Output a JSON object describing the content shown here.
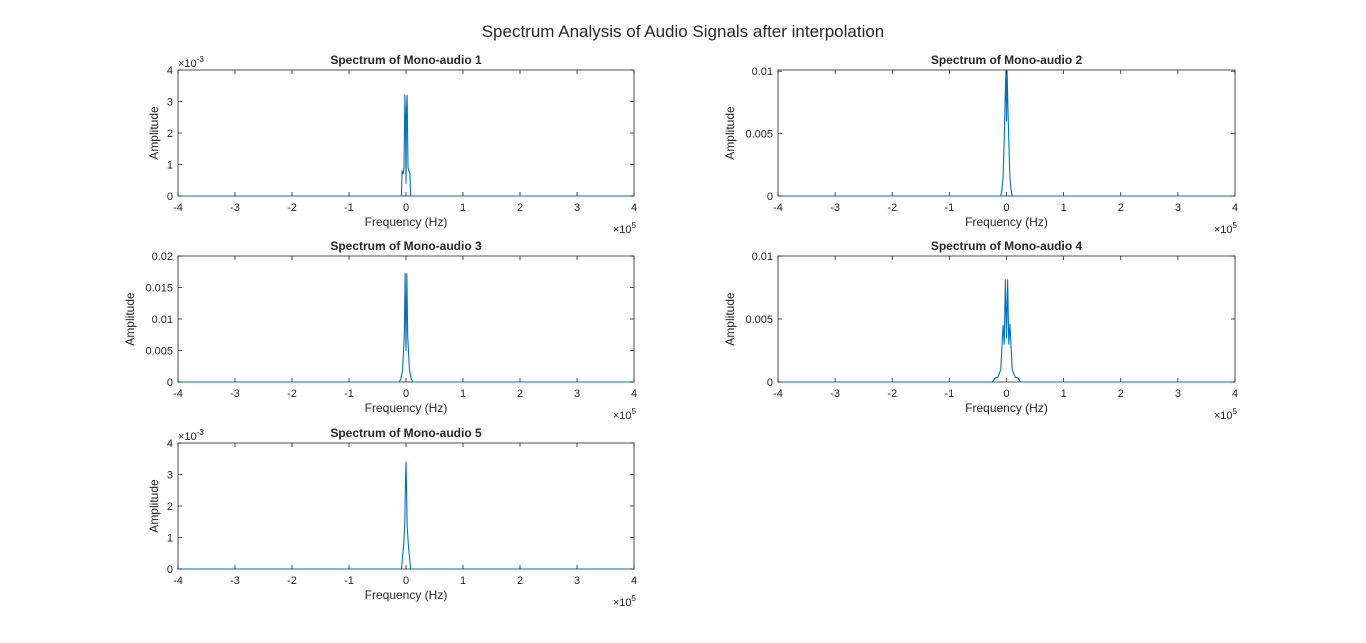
{
  "figure_title": "Spectrum Analysis of Audio Signals after interpolation",
  "colors": {
    "line": "#0072BD",
    "axes": "#262626",
    "background": "#ffffff"
  },
  "chart_data": [
    {
      "type": "line",
      "title": "Spectrum of Mono-audio 1",
      "xlabel": "Frequency (Hz)",
      "ylabel": "Amplitude",
      "x_exponent": "5",
      "y_exponent": "-3",
      "xlim": [
        -400000,
        400000
      ],
      "ylim": [
        0,
        0.004
      ],
      "xticks": [
        -4,
        -3,
        -2,
        -1,
        0,
        1,
        2,
        3,
        4
      ],
      "yticks": [
        0,
        1,
        2,
        3,
        4
      ],
      "ytick_values": [
        0,
        0.001,
        0.002,
        0.003,
        0.004
      ],
      "grid": false,
      "series": [
        {
          "x": [
            -400000,
            -8000,
            -7000,
            -5000,
            -3500,
            -2000,
            -1000,
            0,
            1000,
            2000,
            3500,
            5000,
            7000,
            8000,
            400000
          ],
          "y": [
            0,
            0,
            0.0008,
            0.0007,
            0.0009,
            0.0032,
            0.0025,
            0.0004,
            0.0028,
            0.0032,
            0.0009,
            0.0008,
            0.0007,
            0,
            0
          ]
        }
      ]
    },
    {
      "type": "line",
      "title": "Spectrum of Mono-audio 2",
      "xlabel": "Frequency (Hz)",
      "ylabel": "Amplitude",
      "x_exponent": "5",
      "y_exponent": "",
      "xlim": [
        -400000,
        400000
      ],
      "ylim": [
        0,
        0.0101
      ],
      "xticks": [
        -4,
        -3,
        -2,
        -1,
        0,
        1,
        2,
        3,
        4
      ],
      "yticks": [
        "0",
        "0.005",
        "0.01"
      ],
      "ytick_values": [
        0,
        0.005,
        0.01
      ],
      "grid": false,
      "series": [
        {
          "x": [
            -400000,
            -10000,
            -8000,
            -6000,
            -4000,
            -2000,
            -1000,
            0,
            1000,
            2000,
            4000,
            6000,
            8000,
            10000,
            400000
          ],
          "y": [
            0,
            0,
            0.0005,
            0.0015,
            0.0045,
            0.0085,
            0.0101,
            0.006,
            0.0101,
            0.008,
            0.0045,
            0.0015,
            0.0005,
            0,
            0
          ]
        }
      ]
    },
    {
      "type": "line",
      "title": "Spectrum of Mono-audio 3",
      "xlabel": "Frequency (Hz)",
      "ylabel": "Amplitude",
      "x_exponent": "5",
      "y_exponent": "",
      "xlim": [
        -400000,
        400000
      ],
      "ylim": [
        0,
        0.02
      ],
      "xticks": [
        -4,
        -3,
        -2,
        -1,
        0,
        1,
        2,
        3,
        4
      ],
      "yticks": [
        "0",
        "0.005",
        "0.01",
        "0.015",
        "0.02"
      ],
      "ytick_values": [
        0,
        0.005,
        0.01,
        0.015,
        0.02
      ],
      "grid": false,
      "series": [
        {
          "x": [
            -400000,
            -12000,
            -9000,
            -6000,
            -3000,
            -1500,
            0,
            1500,
            3000,
            6000,
            9000,
            12000,
            400000
          ],
          "y": [
            0,
            0,
            0.0005,
            0.002,
            0.0072,
            0.0172,
            0.005,
            0.0172,
            0.0072,
            0.002,
            0.0005,
            0,
            0
          ]
        }
      ]
    },
    {
      "type": "line",
      "title": "Spectrum of Mono-audio 4",
      "xlabel": "Frequency (Hz)",
      "ylabel": "Amplitude",
      "x_exponent": "5",
      "y_exponent": "",
      "xlim": [
        -400000,
        400000
      ],
      "ylim": [
        0,
        0.01
      ],
      "xticks": [
        -4,
        -3,
        -2,
        -1,
        0,
        1,
        2,
        3,
        4
      ],
      "yticks": [
        "0",
        "0.005",
        "0.01"
      ],
      "ytick_values": [
        0,
        0.005,
        0.01
      ],
      "grid": false,
      "series": [
        {
          "x": [
            -400000,
            -25000,
            -20000,
            -15000,
            -10000,
            -6000,
            -4000,
            -2000,
            0,
            2000,
            4000,
            6000,
            10000,
            15000,
            20000,
            25000,
            400000
          ],
          "y": [
            0,
            0,
            0.0003,
            0.0004,
            0.001,
            0.0045,
            0.003,
            0.0081,
            0.0035,
            0.0081,
            0.003,
            0.0046,
            0.001,
            0.0004,
            0.0003,
            0,
            0
          ]
        }
      ]
    },
    {
      "type": "line",
      "title": "Spectrum of Mono-audio 5",
      "xlabel": "Frequency (Hz)",
      "ylabel": "Amplitude",
      "x_exponent": "5",
      "y_exponent": "-3",
      "xlim": [
        -400000,
        400000
      ],
      "ylim": [
        0,
        0.004
      ],
      "xticks": [
        -4,
        -3,
        -2,
        -1,
        0,
        1,
        2,
        3,
        4
      ],
      "yticks": [
        0,
        1,
        2,
        3,
        4
      ],
      "ytick_values": [
        0,
        0.001,
        0.002,
        0.003,
        0.004
      ],
      "grid": false,
      "series": [
        {
          "x": [
            -400000,
            -8000,
            -6000,
            -4000,
            -2000,
            -1000,
            0,
            1000,
            2000,
            4000,
            6000,
            8000,
            400000
          ],
          "y": [
            0,
            0,
            0.0004,
            0.0008,
            0.0015,
            0.0027,
            0.0034,
            0.0025,
            0.0014,
            0.0008,
            0.0004,
            0,
            0
          ]
        }
      ]
    }
  ]
}
